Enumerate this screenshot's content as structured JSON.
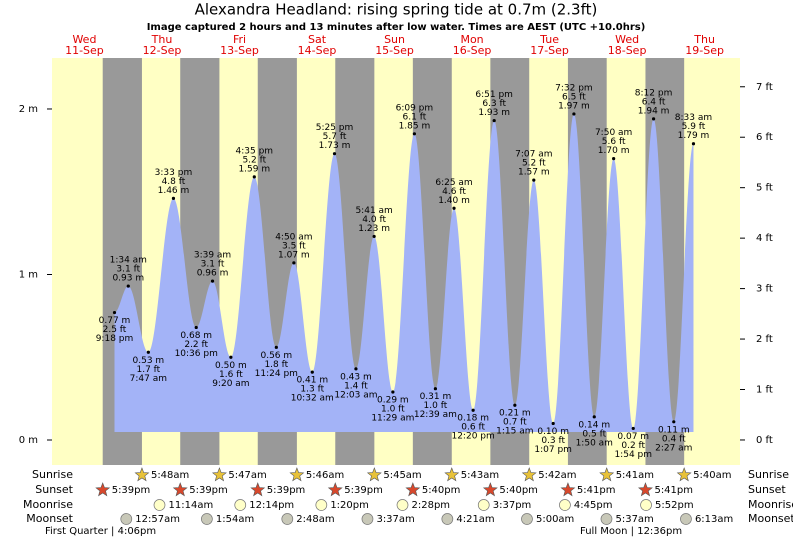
{
  "chart_data": {
    "type": "area",
    "title": "Alexandra Headland: rising  spring tide at 0.7m (2.3ft)",
    "subtitle": "Image captured 2 hours and 13 minutes after low water. Times are AEST (UTC +10.0hrs)",
    "color": "#a3b3f7",
    "day_color": "#ffffc4",
    "night_color": "#999999",
    "ylim": [
      -0.151,
      2.308
    ],
    "yticks": [
      {
        "value": 0,
        "label": "0 m"
      },
      {
        "value": 1,
        "label": "1 m"
      },
      {
        "value": 2,
        "label": "2 m"
      }
    ],
    "y2lim": [
      -0.496,
      7.57
    ],
    "y2ticks": [
      {
        "value": 0,
        "label": "0 ft"
      },
      {
        "value": 1,
        "label": "1 ft"
      },
      {
        "value": 2,
        "label": "2 ft"
      },
      {
        "value": 3,
        "label": "3 ft"
      },
      {
        "value": 4,
        "label": "4 ft"
      },
      {
        "value": 5,
        "label": "5 ft"
      },
      {
        "value": 6,
        "label": "6 ft"
      },
      {
        "value": 7,
        "label": "7 ft"
      }
    ],
    "row_labels": {
      "sunrise": "Sunrise",
      "sunset": "Sunset",
      "moonrise": "Moonrise",
      "moonset": "Moonset"
    },
    "days": [
      {
        "weekday": "Wed",
        "date": "11-Sep",
        "sunset": "5:39pm",
        "tides": [
          {
            "time": "9:18 pm",
            "m": 0.77,
            "m_label": "0.77 m",
            "ft_label": "2.5 ft"
          }
        ]
      },
      {
        "weekday": "Thu",
        "date": "12-Sep",
        "sunrise": "5:48am",
        "sunset": "5:39pm",
        "moonrise": "11:14am",
        "moonset": "12:57am",
        "tides": [
          {
            "time": "1:34 am",
            "m": 0.93,
            "m_label": "0.93 m",
            "ft_label": "3.1 ft"
          },
          {
            "time": "7:47 am",
            "m": 0.53,
            "m_label": "0.53 m",
            "ft_label": "1.7 ft"
          },
          {
            "time": "3:33 pm",
            "m": 1.46,
            "m_label": "1.46 m",
            "ft_label": "4.8 ft"
          },
          {
            "time": "10:36 pm",
            "m": 0.68,
            "m_label": "0.68 m",
            "ft_label": "2.2 ft"
          }
        ]
      },
      {
        "weekday": "Fri",
        "date": "13-Sep",
        "sunrise": "5:47am",
        "sunset": "5:39pm",
        "moonrise": "12:14pm",
        "moonset": "1:54am",
        "tides": [
          {
            "time": "3:39 am",
            "m": 0.96,
            "m_label": "0.96 m",
            "ft_label": "3.1 ft"
          },
          {
            "time": "9:20 am",
            "m": 0.5,
            "m_label": "0.50 m",
            "ft_label": "1.6 ft"
          },
          {
            "time": "4:35 pm",
            "m": 1.59,
            "m_label": "1.59 m",
            "ft_label": "5.2 ft"
          },
          {
            "time": "11:24 pm",
            "m": 0.56,
            "m_label": "0.56 m",
            "ft_label": "1.8 ft"
          }
        ]
      },
      {
        "weekday": "Sat",
        "date": "14-Sep",
        "sunrise": "5:46am",
        "sunset": "5:39pm",
        "moonrise": "1:20pm",
        "moonset": "2:48am",
        "tides": [
          {
            "time": "4:50 am",
            "m": 1.07,
            "m_label": "1.07 m",
            "ft_label": "3.5 ft"
          },
          {
            "time": "10:32 am",
            "m": 0.41,
            "m_label": "0.41 m",
            "ft_label": "1.3 ft"
          },
          {
            "time": "5:25 pm",
            "m": 1.73,
            "m_label": "1.73 m",
            "ft_label": "5.7 ft"
          }
        ]
      },
      {
        "weekday": "Sun",
        "date": "15-Sep",
        "sunrise": "5:45am",
        "sunset": "5:40pm",
        "moonrise": "2:28pm",
        "moonset": "3:37am",
        "tides": [
          {
            "time": "12:03 am",
            "m": 0.43,
            "m_label": "0.43 m",
            "ft_label": "1.4 ft"
          },
          {
            "time": "5:41 am",
            "m": 1.23,
            "m_label": "1.23 m",
            "ft_label": "4.0 ft"
          },
          {
            "time": "11:29 am",
            "m": 0.29,
            "m_label": "0.29 m",
            "ft_label": "1.0 ft"
          },
          {
            "time": "6:09 pm",
            "m": 1.85,
            "m_label": "1.85 m",
            "ft_label": "6.1 ft"
          }
        ]
      },
      {
        "weekday": "Mon",
        "date": "16-Sep",
        "sunrise": "5:43am",
        "sunset": "5:40pm",
        "moonrise": "3:37pm",
        "moonset": "4:21am",
        "tides": [
          {
            "time": "12:39 am",
            "m": 0.31,
            "m_label": "0.31 m",
            "ft_label": "1.0 ft"
          },
          {
            "time": "6:25 am",
            "m": 1.4,
            "m_label": "1.40 m",
            "ft_label": "4.6 ft"
          },
          {
            "time": "12:20 pm",
            "m": 0.18,
            "m_label": "0.18 m",
            "ft_label": "0.6 ft"
          },
          {
            "time": "6:51 pm",
            "m": 1.93,
            "m_label": "1.93 m",
            "ft_label": "6.3 ft"
          }
        ]
      },
      {
        "weekday": "Tue",
        "date": "17-Sep",
        "sunrise": "5:42am",
        "sunset": "5:41pm",
        "moonrise": "4:45pm",
        "moonset": "5:00am",
        "tides": [
          {
            "time": "1:15 am",
            "m": 0.21,
            "m_label": "0.21 m",
            "ft_label": "0.7 ft"
          },
          {
            "time": "7:07 am",
            "m": 1.57,
            "m_label": "1.57 m",
            "ft_label": "5.2 ft"
          },
          {
            "time": "1:07 pm",
            "m": 0.1,
            "m_label": "0.10 m",
            "ft_label": "0.3 ft"
          },
          {
            "time": "7:32 pm",
            "m": 1.97,
            "m_label": "1.97 m",
            "ft_label": "6.5 ft"
          }
        ]
      },
      {
        "weekday": "Wed",
        "date": "18-Sep",
        "sunrise": "5:41am",
        "sunset": "5:41pm",
        "moonrise": "5:52pm",
        "moonset": "5:37am",
        "tides": [
          {
            "time": "1:50 am",
            "m": 0.14,
            "m_label": "0.14 m",
            "ft_label": "0.5 ft"
          },
          {
            "time": "7:50 am",
            "m": 1.7,
            "m_label": "1.70 m",
            "ft_label": "5.6 ft"
          },
          {
            "time": "1:54 pm",
            "m": 0.07,
            "m_label": "0.07 m",
            "ft_label": "0.2 ft"
          },
          {
            "time": "8:12 pm",
            "m": 1.94,
            "m_label": "1.94 m",
            "ft_label": "6.4 ft"
          }
        ]
      },
      {
        "weekday": "Thu",
        "date": "19-Sep",
        "sunrise": "5:40am",
        "moonset": "6:13am",
        "tides": [
          {
            "time": "2:27 am",
            "m": 0.11,
            "m_label": "0.11 m",
            "ft_label": "0.4 ft"
          },
          {
            "time": "8:33 am",
            "m": 1.79,
            "m_label": "1.79 m",
            "ft_label": "5.9 ft"
          }
        ]
      }
    ],
    "moon_phases": [
      "First Quarter | 4:06pm",
      "Full Moon | 12:36pm"
    ]
  }
}
